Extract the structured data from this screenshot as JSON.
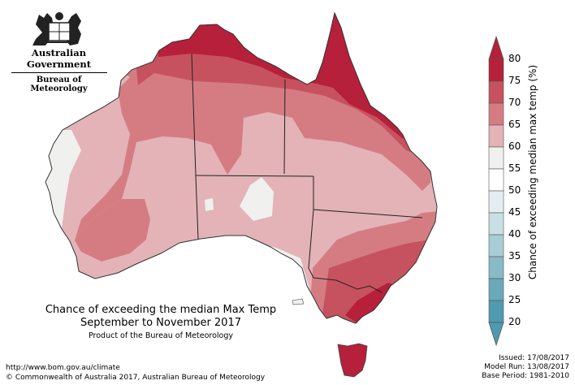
{
  "header": {
    "government": "Australian Government",
    "bureau": "Bureau of Meteorology"
  },
  "map_title": {
    "line1": "Chance of exceeding the median Max Temp",
    "line2": "September to November 2017",
    "product": "Product of the Bureau of Meteorology"
  },
  "footer": {
    "url": "http://www.bom.gov.au/climate",
    "copyright": "© Commonwealth of Australia 2017, Australian Bureau of Meteorology",
    "issued": "Issued: 17/08/2017",
    "model_run": "Model Run: 13/08/2017",
    "base_period": "Base Period: 1981-2010"
  },
  "legend": {
    "title": "Chance of exceeding median max temp (%)",
    "ticks": [
      "80",
      "75",
      "70",
      "65",
      "60",
      "55",
      "50",
      "45",
      "40",
      "35",
      "30",
      "25",
      "20"
    ],
    "colors": [
      "#b6203a",
      "#c7525f",
      "#d57c83",
      "#e3b3b7",
      "#f0f0ee",
      "#ffffff",
      "#e4eef1",
      "#c8e0e5",
      "#a9cdd5",
      "#89bac7",
      "#6aa9b9",
      "#4f9ab0"
    ],
    "arrow_top_color": "#b6203a",
    "arrow_bottom_color": "#4f9ab0"
  }
}
